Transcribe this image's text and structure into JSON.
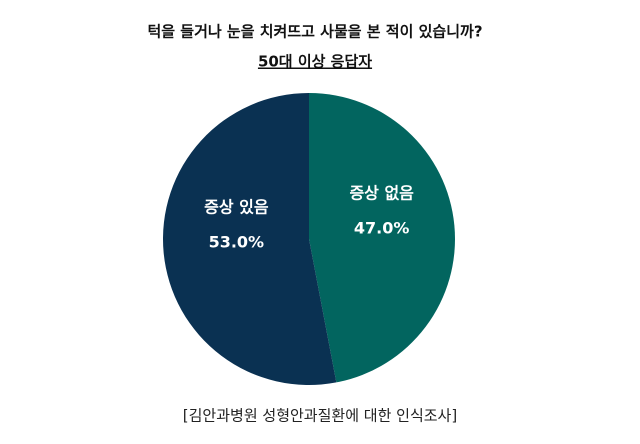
{
  "chart_data": {
    "type": "pie",
    "title": "턱을 들거나 눈을 치켜뜨고 사물을 본 적이 있습니까?",
    "subtitle": "50대 이상 응답자",
    "categories": [
      "증상 없음",
      "증상 있음"
    ],
    "values": [
      47.0,
      53.0
    ],
    "value_labels": [
      "47.0%",
      "53.0%"
    ],
    "colors": [
      "#02655f",
      "#0a3152"
    ],
    "source": "[김안과병원 성형안과질환에 대한 인식조사]"
  }
}
